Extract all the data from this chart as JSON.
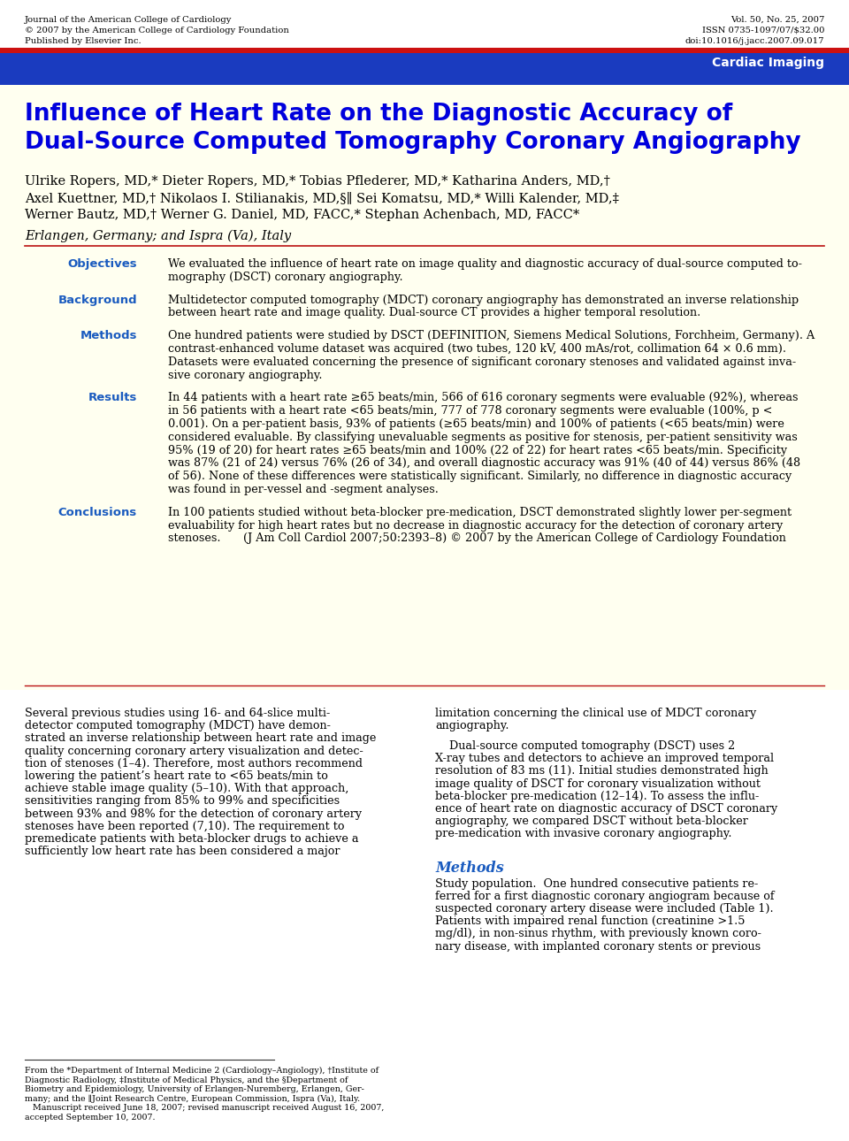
{
  "page_bg": "#fffff0",
  "white_bg": "#ffffff",
  "blue_header_bg": "#1a3bbf",
  "red_stripe": "#cc1111",
  "title_color": "#0000dd",
  "section_label_color": "#1a5bbf",
  "body_text_color": "#000000",
  "journal_name": "Journal of the American College of Cardiology",
  "copyright_line": "© 2007 by the American College of Cardiology Foundation",
  "publisher_line": "Published by Elsevier Inc.",
  "vol_info": "Vol. 50, No. 25, 2007",
  "issn_info": "ISSN 0735-1097/07/$32.00",
  "doi_info": "doi:10.1016/j.jacc.2007.09.017",
  "header_label": "Cardiac Imaging",
  "article_title_line1": "Influence of Heart Rate on the Diagnostic Accuracy of",
  "article_title_line2": "Dual-Source Computed Tomography Coronary Angiography",
  "authors_line1": "Ulrike Ropers, MD,* Dieter Ropers, MD,* Tobias Pflederer, MD,* Katharina Anders, MD,†",
  "authors_line2": "Axel Kuettner, MD,† Nikolaos I. Stilianakis, MD,§∥ Sei Komatsu, MD,* Willi Kalender, MD,‡",
  "authors_line3": "Werner Bautz, MD,† Werner G. Daniel, MD, FACC,* Stephan Achenbach, MD, FACC*",
  "affiliation": "Erlangen, Germany; and Ispra (Va), Italy",
  "abstract_sections": [
    {
      "label": "Objectives",
      "text": "We evaluated the influence of heart rate on image quality and diagnostic accuracy of dual-source computed to-\nmography (DSCT) coronary angiography."
    },
    {
      "label": "Background",
      "text": "Multidetector computed tomography (MDCT) coronary angiography has demonstrated an inverse relationship\nbetween heart rate and image quality. Dual-source CT provides a higher temporal resolution."
    },
    {
      "label": "Methods",
      "text": "One hundred patients were studied by DSCT (DEFINITION, Siemens Medical Solutions, Forchheim, Germany). A\ncontrast-enhanced volume dataset was acquired (two tubes, 120 kV, 400 mAs/rot, collimation 64 × 0.6 mm).\nDatasets were evaluated concerning the presence of significant coronary stenoses and validated against inva-\nsive coronary angiography."
    },
    {
      "label": "Results",
      "text": "In 44 patients with a heart rate ≥65 beats/min, 566 of 616 coronary segments were evaluable (92%), whereas\nin 56 patients with a heart rate <65 beats/min, 777 of 778 coronary segments were evaluable (100%, p <\n0.001). On a per-patient basis, 93% of patients (≥65 beats/min) and 100% of patients (<65 beats/min) were\nconsidered evaluable. By classifying unevaluable segments as positive for stenosis, per-patient sensitivity was\n95% (19 of 20) for heart rates ≥65 beats/min and 100% (22 of 22) for heart rates <65 beats/min. Specificity\nwas 87% (21 of 24) versus 76% (26 of 34), and overall diagnostic accuracy was 91% (40 of 44) versus 86% (48\nof 56). None of these differences were statistically significant. Similarly, no difference in diagnostic accuracy\nwas found in per-vessel and -segment analyses."
    },
    {
      "label": "Conclusions",
      "text": "In 100 patients studied without beta-blocker pre-medication, DSCT demonstrated slightly lower per-segment\nevaluability for high heart rates but no decrease in diagnostic accuracy for the detection of coronary artery\nstenoses.  (J Am Coll Cardiol 2007;50:2393–8) © 2007 by the American College of Cardiology Foundation"
    }
  ],
  "body_col1_lines": [
    "Several previous studies using 16- and 64-slice multi-",
    "detector computed tomography (MDCT) have demon-",
    "strated an inverse relationship between heart rate and image",
    "quality concerning coronary artery visualization and detec-",
    "tion of stenoses (1–4). Therefore, most authors recommend",
    "lowering the patient’s heart rate to <65 beats/min to",
    "achieve stable image quality (5–10). With that approach,",
    "sensitivities ranging from 85% to 99% and specificities",
    "between 93% and 98% for the detection of coronary artery",
    "stenoses have been reported (7,10). The requirement to",
    "premedicate patients with beta-blocker drugs to achieve a",
    "sufficiently low heart rate has been considered a major"
  ],
  "body_col2_lines": [
    "limitation concerning the clinical use of MDCT coronary",
    "angiography.",
    "",
    "    Dual-source computed tomography (DSCT) uses 2",
    "X-ray tubes and detectors to achieve an improved temporal",
    "resolution of 83 ms (11). Initial studies demonstrated high",
    "image quality of DSCT for coronary visualization without",
    "beta-blocker pre-medication (12–14). To assess the influ-",
    "ence of heart rate on diagnostic accuracy of DSCT coronary",
    "angiography, we compared DSCT without beta-blocker",
    "pre-medication with invasive coronary angiography."
  ],
  "methods_header": "Methods",
  "methods_col2_lines": [
    "Study population.  One hundred consecutive patients re-",
    "ferred for a first diagnostic coronary angiogram because of",
    "suspected coronary artery disease were included (Table 1).",
    "Patients with impaired renal function (creatinine >1.5",
    "mg/dl), in non-sinus rhythm, with previously known coro-",
    "nary disease, with implanted coronary stents or previous"
  ],
  "footnote_lines": [
    "From the *Department of Internal Medicine 2 (Cardiology–Angiology), †Institute of",
    "Diagnostic Radiology, ‡Institute of Medical Physics, and the §Department of",
    "Biometry and Epidemiology, University of Erlangen-Nuremberg, Erlangen, Ger-",
    "many; and the ∥Joint Research Centre, European Commission, Ispra (Va), Italy.",
    "   Manuscript received June 18, 2007; revised manuscript received August 16, 2007,",
    "accepted September 10, 2007."
  ]
}
